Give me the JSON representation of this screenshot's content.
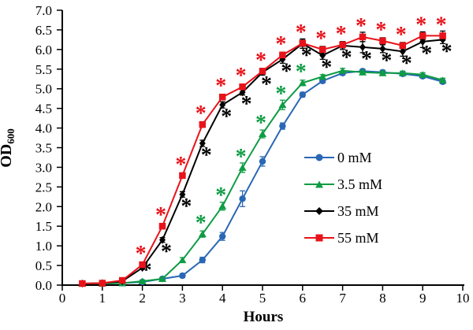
{
  "chart_data": {
    "type": "line",
    "title": "",
    "xlabel": "Hours",
    "ylabel_main": "OD",
    "ylabel_sub": "600",
    "xlim": [
      0,
      10
    ],
    "ylim": [
      0.0,
      7.0
    ],
    "grid": false,
    "legend_position": "middle-right",
    "x_ticks": [
      "0",
      "1",
      "2",
      "3",
      "4",
      "5",
      "6",
      "7",
      "8",
      "9",
      "10"
    ],
    "y_ticks": [
      "0.0",
      "0.5",
      "1.0",
      "1.5",
      "2.0",
      "2.5",
      "3.0",
      "3.5",
      "4.0",
      "4.5",
      "5.0",
      "5.5",
      "6.0",
      "6.5",
      "7.0"
    ],
    "x": [
      0.5,
      1.0,
      1.5,
      2.0,
      2.5,
      3.0,
      3.5,
      4.0,
      4.5,
      5.0,
      5.5,
      6.0,
      6.5,
      7.0,
      7.5,
      8.0,
      8.5,
      9.0,
      9.5
    ],
    "series": [
      {
        "name": "0 mM",
        "color": "#2a67b5",
        "marker": "circle",
        "error_bar_color": "#2a67b5",
        "values": [
          0.04,
          0.04,
          0.05,
          0.08,
          0.16,
          0.24,
          0.64,
          1.24,
          2.2,
          3.15,
          4.05,
          4.85,
          5.2,
          5.4,
          5.45,
          5.42,
          5.38,
          5.32,
          5.18
        ],
        "errors": [
          0.02,
          0.02,
          0.02,
          0.03,
          0.04,
          0.05,
          0.07,
          0.1,
          0.2,
          0.12,
          0.08,
          0.06,
          0.05,
          0.05,
          0.05,
          0.05,
          0.05,
          0.05,
          0.05
        ],
        "significance_asterisks": {
          "hours": [],
          "placement": "above"
        }
      },
      {
        "name": "3.5 mM",
        "color": "#0e9c44",
        "marker": "triangle",
        "error_bar_color": "#0e9c44",
        "values": [
          0.04,
          0.04,
          0.05,
          0.1,
          0.16,
          0.64,
          1.3,
          2.01,
          2.99,
          3.85,
          4.59,
          5.15,
          5.31,
          5.46,
          5.42,
          5.4,
          5.4,
          5.36,
          5.22
        ],
        "errors": [
          0.02,
          0.02,
          0.02,
          0.03,
          0.04,
          0.06,
          0.08,
          0.1,
          0.12,
          0.1,
          0.12,
          0.07,
          0.05,
          0.06,
          0.05,
          0.05,
          0.05,
          0.05,
          0.05
        ],
        "significance_asterisks": {
          "hours": [
            3.5,
            4.0,
            4.5,
            5.0,
            5.5,
            6.0
          ],
          "placement": "above"
        }
      },
      {
        "name": "35 mM",
        "color": "#000000",
        "marker": "diamond",
        "error_bar_color": "#000000",
        "values": [
          0.04,
          0.05,
          0.1,
          0.44,
          1.15,
          2.31,
          3.61,
          4.59,
          4.91,
          5.42,
          5.75,
          6.15,
          5.85,
          6.1,
          6.06,
          6.02,
          5.95,
          6.2,
          6.25
        ],
        "errors": [
          0.02,
          0.02,
          0.03,
          0.04,
          0.06,
          0.07,
          0.08,
          0.08,
          0.07,
          0.07,
          0.1,
          0.12,
          0.1,
          0.1,
          0.14,
          0.1,
          0.12,
          0.15,
          0.1
        ],
        "significance_asterisks": {
          "hours": [
            2.0,
            2.5,
            3.0,
            3.5,
            4.0,
            4.5,
            5.0,
            5.5,
            6.0,
            6.5,
            7.0,
            7.5,
            8.0,
            8.5,
            9.0,
            9.5
          ],
          "placement": "below"
        }
      },
      {
        "name": "55 mM",
        "color": "#e8131a",
        "marker": "square",
        "error_bar_color": "#000000",
        "values": [
          0.04,
          0.05,
          0.12,
          0.52,
          1.5,
          2.79,
          4.09,
          4.79,
          5.05,
          5.45,
          5.86,
          6.16,
          6.0,
          6.12,
          6.32,
          6.22,
          6.1,
          6.35,
          6.35
        ],
        "errors": [
          0.02,
          0.02,
          0.03,
          0.05,
          0.06,
          0.06,
          0.07,
          0.07,
          0.06,
          0.06,
          0.07,
          0.08,
          0.08,
          0.08,
          0.12,
          0.08,
          0.08,
          0.1,
          0.12
        ],
        "significance_asterisks": {
          "hours": [
            2.0,
            2.5,
            3.0,
            3.5,
            4.0,
            4.5,
            5.0,
            5.5,
            6.0,
            6.5,
            7.0,
            7.5,
            8.0,
            8.5,
            9.0,
            9.5
          ],
          "placement": "above"
        }
      }
    ]
  }
}
